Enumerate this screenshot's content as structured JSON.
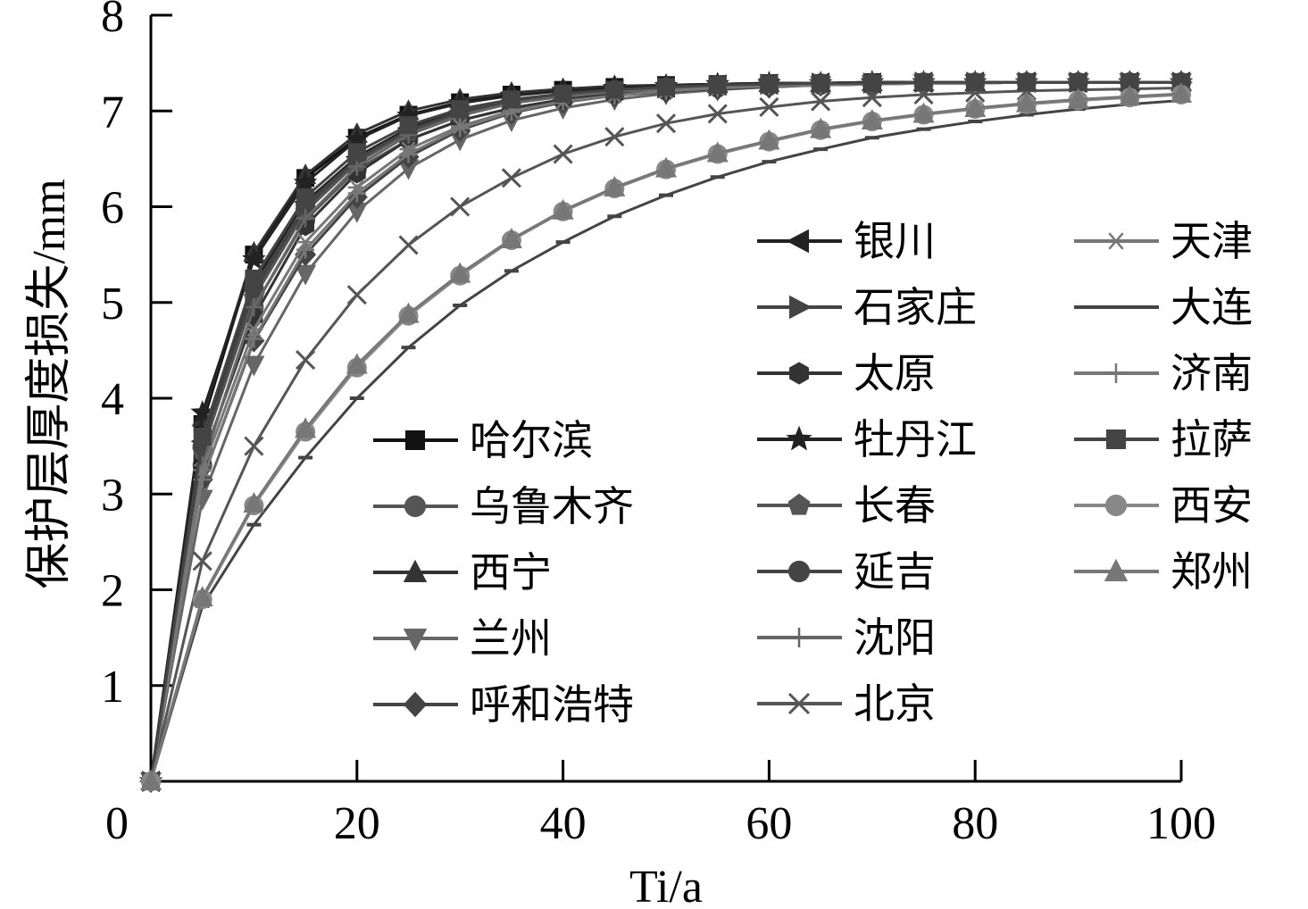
{
  "chart_data": {
    "type": "line",
    "title": "",
    "xlabel": "Ti/a",
    "ylabel": "保护层厚度损失/mm",
    "xlim": [
      0,
      100
    ],
    "ylim": [
      0,
      8
    ],
    "xticks": [
      0,
      20,
      40,
      60,
      80,
      100
    ],
    "yticks": [
      1,
      2,
      3,
      4,
      5,
      6,
      7,
      8
    ],
    "x_origin_label": "0",
    "grid": false,
    "legend_position": "inside, right-center",
    "x": [
      0,
      5,
      10,
      15,
      20,
      25,
      30,
      35,
      40,
      45,
      50,
      55,
      60,
      65,
      70,
      75,
      80,
      85,
      90,
      95,
      100
    ],
    "series": [
      {
        "name": "哈尔滨",
        "marker": "square",
        "color": "#111111",
        "values": [
          0,
          3.73,
          5.5,
          6.3,
          6.72,
          6.96,
          7.09,
          7.17,
          7.22,
          7.25,
          7.27,
          7.28,
          7.29,
          7.29,
          7.3,
          7.3,
          7.3,
          7.3,
          7.3,
          7.3,
          7.3
        ]
      },
      {
        "name": "乌鲁木齐",
        "marker": "circle",
        "color": "#555555",
        "values": [
          0,
          3.3,
          4.95,
          5.86,
          6.39,
          6.7,
          6.9,
          7.03,
          7.11,
          7.17,
          7.21,
          7.24,
          7.26,
          7.27,
          7.28,
          7.29,
          7.29,
          7.3,
          7.3,
          7.3,
          7.3
        ]
      },
      {
        "name": "西宁",
        "marker": "triangle-up",
        "color": "#333333",
        "values": [
          0,
          3.8,
          5.52,
          6.33,
          6.76,
          7.0,
          7.12,
          7.19,
          7.23,
          7.26,
          7.27,
          7.28,
          7.29,
          7.29,
          7.3,
          7.3,
          7.3,
          7.3,
          7.3,
          7.3,
          7.3
        ]
      },
      {
        "name": "兰州",
        "marker": "triangle-down",
        "color": "#666666",
        "values": [
          0,
          2.95,
          4.35,
          5.3,
          5.95,
          6.4,
          6.7,
          6.9,
          7.03,
          7.12,
          7.18,
          7.22,
          7.25,
          7.27,
          7.28,
          7.29,
          7.29,
          7.3,
          7.3,
          7.3,
          7.3
        ]
      },
      {
        "name": "呼和浩特",
        "marker": "diamond",
        "color": "#444444",
        "values": [
          0,
          3.15,
          4.6,
          5.5,
          6.1,
          6.52,
          6.8,
          6.98,
          7.09,
          7.16,
          7.2,
          7.23,
          7.25,
          7.27,
          7.28,
          7.29,
          7.29,
          7.3,
          7.3,
          7.3,
          7.3
        ]
      },
      {
        "name": "银川",
        "marker": "triangle-left",
        "color": "#222222",
        "values": [
          0,
          3.55,
          5.2,
          6.05,
          6.52,
          6.82,
          7.0,
          7.11,
          7.18,
          7.22,
          7.25,
          7.27,
          7.28,
          7.29,
          7.29,
          7.3,
          7.3,
          7.3,
          7.3,
          7.3,
          7.3
        ]
      },
      {
        "name": "石家庄",
        "marker": "triangle-right",
        "color": "#444444",
        "values": [
          0,
          3.45,
          5.1,
          5.98,
          6.48,
          6.79,
          6.98,
          7.1,
          7.17,
          7.21,
          7.24,
          7.26,
          7.28,
          7.29,
          7.29,
          7.3,
          7.3,
          7.3,
          7.3,
          7.3,
          7.3
        ]
      },
      {
        "name": "太原",
        "marker": "hexagon",
        "color": "#333333",
        "values": [
          0,
          3.35,
          4.85,
          5.8,
          6.35,
          6.7,
          6.9,
          7.03,
          7.12,
          7.18,
          7.22,
          7.25,
          7.27,
          7.28,
          7.29,
          7.29,
          7.3,
          7.3,
          7.3,
          7.3,
          7.3
        ]
      },
      {
        "name": "牡丹江",
        "marker": "star",
        "color": "#222222",
        "values": [
          0,
          3.85,
          5.45,
          6.25,
          6.7,
          6.95,
          7.08,
          7.16,
          7.21,
          7.24,
          7.26,
          7.28,
          7.29,
          7.29,
          7.3,
          7.3,
          7.3,
          7.3,
          7.3,
          7.3,
          7.3
        ]
      },
      {
        "name": "长春",
        "marker": "pentagon",
        "color": "#555555",
        "values": [
          0,
          3.45,
          5.05,
          5.95,
          6.46,
          6.78,
          6.97,
          7.09,
          7.16,
          7.21,
          7.24,
          7.26,
          7.28,
          7.29,
          7.29,
          7.3,
          7.3,
          7.3,
          7.3,
          7.3,
          7.3
        ]
      },
      {
        "name": "延吉",
        "marker": "circle",
        "color": "#444444",
        "values": [
          0,
          3.5,
          5.15,
          6.02,
          6.5,
          6.8,
          6.99,
          7.1,
          7.17,
          7.22,
          7.25,
          7.27,
          7.28,
          7.29,
          7.29,
          7.3,
          7.3,
          7.3,
          7.3,
          7.3,
          7.3
        ]
      },
      {
        "name": "沈阳",
        "marker": "plus",
        "color": "#666666",
        "values": [
          0,
          3.3,
          4.95,
          5.88,
          6.42,
          6.75,
          6.95,
          7.08,
          7.15,
          7.2,
          7.23,
          7.25,
          7.27,
          7.28,
          7.29,
          7.29,
          7.3,
          7.3,
          7.3,
          7.3,
          7.3
        ]
      },
      {
        "name": "北京",
        "marker": "x",
        "color": "#555555",
        "values": [
          0,
          2.3,
          3.5,
          4.4,
          5.08,
          5.6,
          6.0,
          6.3,
          6.55,
          6.73,
          6.87,
          6.97,
          7.04,
          7.1,
          7.14,
          7.17,
          7.19,
          7.21,
          7.22,
          7.23,
          7.24
        ]
      },
      {
        "name": "天津",
        "marker": "asterisk",
        "color": "#777777",
        "values": [
          0,
          3.25,
          4.72,
          5.63,
          6.2,
          6.6,
          6.84,
          7.0,
          7.1,
          7.16,
          7.21,
          7.24,
          7.26,
          7.27,
          7.28,
          7.29,
          7.29,
          7.3,
          7.3,
          7.3,
          7.3
        ]
      },
      {
        "name": "大连",
        "marker": "dash",
        "color": "#444444",
        "values": [
          0,
          1.83,
          2.68,
          3.38,
          4.0,
          4.53,
          4.97,
          5.33,
          5.63,
          5.9,
          6.12,
          6.31,
          6.47,
          6.6,
          6.72,
          6.81,
          6.89,
          6.96,
          7.02,
          7.07,
          7.11
        ]
      },
      {
        "name": "济南",
        "marker": "plus",
        "color": "#777777",
        "values": [
          0,
          3.15,
          4.62,
          5.55,
          6.14,
          6.55,
          6.82,
          6.99,
          7.1,
          7.16,
          7.21,
          7.24,
          7.26,
          7.27,
          7.28,
          7.29,
          7.29,
          7.3,
          7.3,
          7.3,
          7.3
        ]
      },
      {
        "name": "拉萨",
        "marker": "square",
        "color": "#444444",
        "values": [
          0,
          3.6,
          5.25,
          6.1,
          6.57,
          6.85,
          7.02,
          7.12,
          7.18,
          7.22,
          7.25,
          7.27,
          7.28,
          7.29,
          7.29,
          7.3,
          7.3,
          7.3,
          7.3,
          7.3,
          7.3
        ]
      },
      {
        "name": "西安",
        "marker": "circle",
        "color": "#888888",
        "values": [
          0,
          1.9,
          2.88,
          3.65,
          4.32,
          4.86,
          5.28,
          5.65,
          5.95,
          6.19,
          6.39,
          6.55,
          6.68,
          6.8,
          6.89,
          6.96,
          7.02,
          7.07,
          7.11,
          7.14,
          7.17
        ]
      },
      {
        "name": "郑州",
        "marker": "triangle-up",
        "color": "#777777",
        "values": [
          0,
          1.92,
          2.9,
          3.68,
          4.35,
          4.88,
          5.3,
          5.66,
          5.96,
          6.2,
          6.4,
          6.56,
          6.69,
          6.81,
          6.9,
          6.97,
          7.03,
          7.08,
          7.12,
          7.15,
          7.18
        ]
      }
    ],
    "legend_columns": [
      [
        "哈尔滨",
        "乌鲁木齐",
        "西宁",
        "兰州",
        "呼和浩特"
      ],
      [
        "银川",
        "石家庄",
        "太原",
        "牡丹江",
        "长春",
        "延吉",
        "沈阳",
        "北京"
      ],
      [
        "天津",
        "大连",
        "济南",
        "拉萨",
        "西安",
        "郑州"
      ]
    ]
  }
}
